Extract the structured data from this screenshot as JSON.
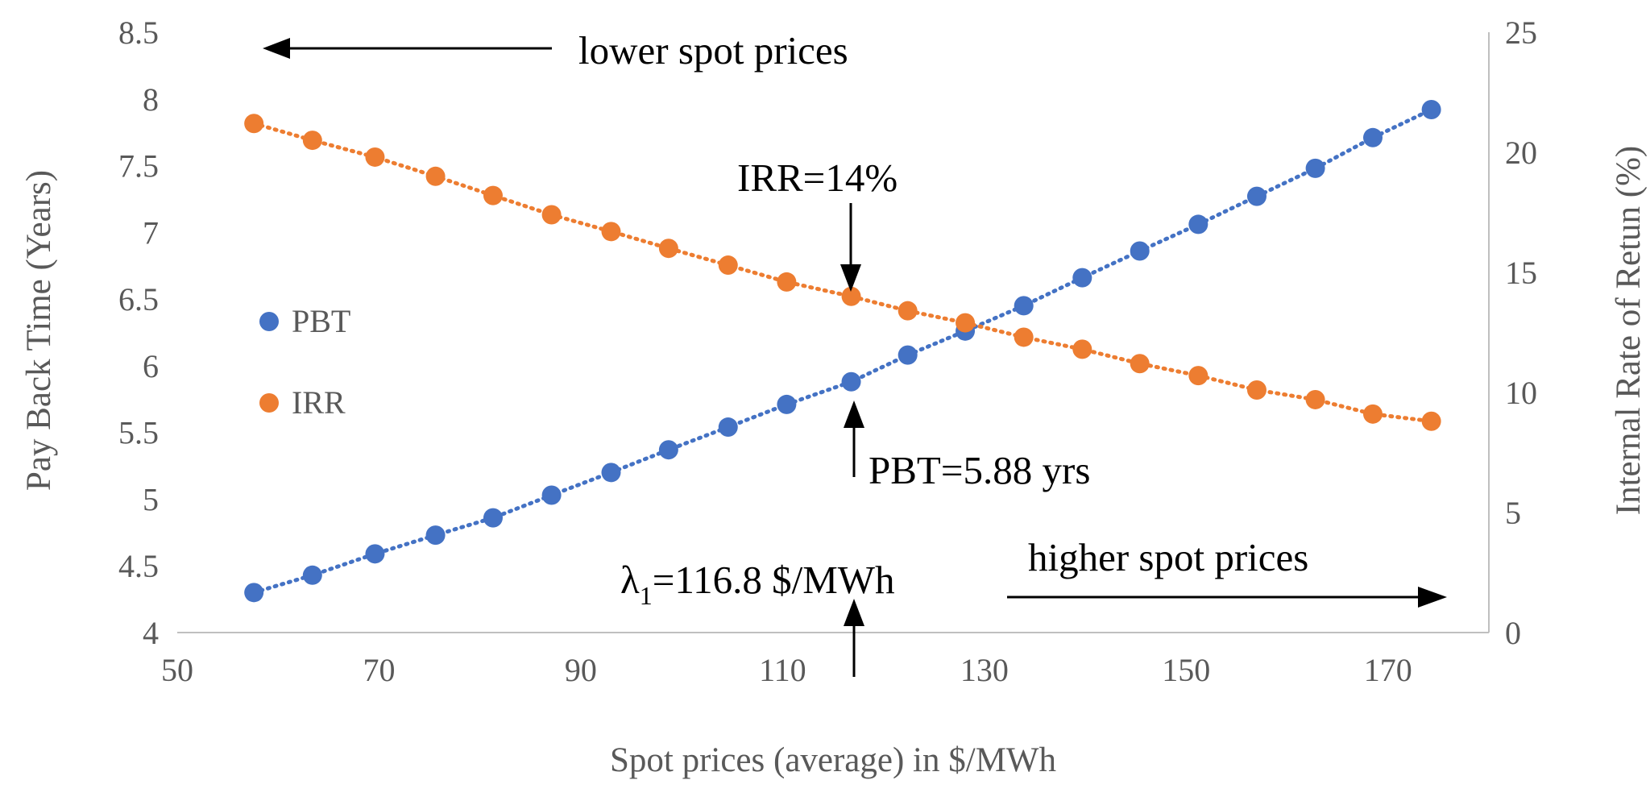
{
  "chart_data": {
    "type": "scatter",
    "title": "",
    "xlabel": "Spot prices (average) in $/MWh",
    "ylabel_left": "Pay Back Time (Years)",
    "ylabel_right": "Internal Rate of Retun (%)",
    "xlim": [
      50,
      180
    ],
    "ylim_left": [
      4,
      8.5
    ],
    "ylim_right": [
      0,
      25
    ],
    "x_ticks": [
      "50",
      "70",
      "90",
      "110",
      "130",
      "150",
      "170"
    ],
    "y_left_ticks": [
      "4",
      "4.5",
      "5",
      "5.5",
      "6",
      "6.5",
      "7",
      "7.5",
      "8",
      "8.5"
    ],
    "y_right_ticks": [
      "0",
      "5",
      "10",
      "15",
      "20",
      "25"
    ],
    "grid": false,
    "legend_position": "left",
    "colors": {
      "PBT": "#4472c4",
      "IRR": "#ed7d31"
    },
    "series": [
      {
        "name": "PBT",
        "axis": "left",
        "trendline": "dotted",
        "x": [
          57.6,
          63.4,
          69.6,
          75.6,
          81.3,
          87.1,
          93,
          98.7,
          104.6,
          110.4,
          116.8,
          122.4,
          128.1,
          133.9,
          139.7,
          145.4,
          151.2,
          157,
          162.8,
          168.5,
          174.3
        ],
        "values": [
          4.3,
          4.43,
          4.59,
          4.73,
          4.86,
          5.03,
          5.2,
          5.37,
          5.54,
          5.71,
          5.88,
          6.08,
          6.26,
          6.45,
          6.66,
          6.86,
          7.06,
          7.27,
          7.48,
          7.71,
          7.92
        ]
      },
      {
        "name": "IRR",
        "axis": "right",
        "trendline": "dotted",
        "x": [
          57.6,
          63.4,
          69.6,
          75.6,
          81.3,
          87.1,
          93,
          98.7,
          104.6,
          110.4,
          116.8,
          122.4,
          128.1,
          133.9,
          139.7,
          145.4,
          151.2,
          157,
          162.8,
          168.5,
          174.3
        ],
        "values": [
          21.2,
          20.5,
          19.8,
          19.0,
          18.2,
          17.4,
          16.7,
          16.0,
          15.3,
          14.6,
          14.0,
          13.4,
          12.9,
          12.3,
          11.8,
          11.2,
          10.7,
          10.1,
          9.7,
          9.1,
          8.8
        ]
      }
    ],
    "annotations": {
      "lower": "lower  spot prices",
      "higher": "higher  spot prices",
      "irr": "IRR=14%",
      "pbt": "PBT=5.88 yrs",
      "lambda_symbol": "λ",
      "lambda_sub": "1",
      "lambda_rest": "=116.8 $/MWh"
    }
  }
}
